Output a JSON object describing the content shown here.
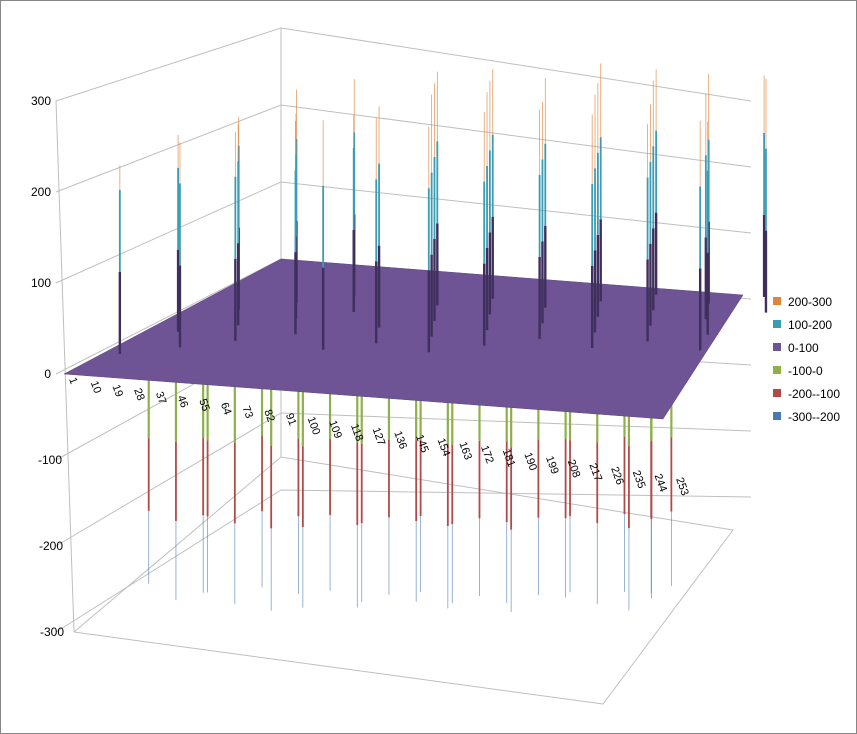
{
  "chart_data": {
    "type": "surface",
    "title": "",
    "xlabel": "",
    "ylabel": "",
    "zlabel": "",
    "z_ticks": [
      "300",
      "200",
      "100",
      "0",
      "-100",
      "-200",
      "-300"
    ],
    "zlim": [
      -300,
      300
    ],
    "x_tick_labels": [
      "1",
      "10",
      "19",
      "28",
      "37",
      "46",
      "55",
      "64",
      "73",
      "82",
      "91",
      "100",
      "109",
      "118",
      "127",
      "136",
      "145",
      "154",
      "163",
      "172",
      "181",
      "190",
      "199",
      "208",
      "217",
      "226",
      "235",
      "244",
      "253"
    ],
    "grid": true,
    "legend_position": "right",
    "legend": [
      {
        "label": "200-300",
        "color": "#E0843C"
      },
      {
        "label": "100-200",
        "color": "#3C9CB4"
      },
      {
        "label": "0-100",
        "color": "#6E5494"
      },
      {
        "label": "-100-0",
        "color": "#8DB04A"
      },
      {
        "label": "-200--100",
        "color": "#B04A48"
      },
      {
        "label": "-300--200",
        "color": "#4A78B0"
      }
    ],
    "base_level": 0,
    "peaks": [
      {
        "x": 12,
        "value": 230
      },
      {
        "x": 18,
        "value": 240
      },
      {
        "x": 25,
        "value": 235
      },
      {
        "x": 32,
        "value": 250
      },
      {
        "x": 38,
        "value": 245
      },
      {
        "x": 44,
        "value": 260
      },
      {
        "x": 50,
        "value": 255
      },
      {
        "x": 57,
        "value": 250
      },
      {
        "x": 63,
        "value": 265
      },
      {
        "x": 70,
        "value": 260
      },
      {
        "x": 76,
        "value": 240
      },
      {
        "x": 95,
        "value": 280
      },
      {
        "x": 100,
        "value": 270
      },
      {
        "x": 106,
        "value": 285
      },
      {
        "x": 112,
        "value": 275
      },
      {
        "x": 118,
        "value": 290
      },
      {
        "x": 124,
        "value": 280
      },
      {
        "x": 130,
        "value": 295
      },
      {
        "x": 136,
        "value": 285
      },
      {
        "x": 142,
        "value": 275
      },
      {
        "x": 148,
        "value": 290
      },
      {
        "x": 154,
        "value": 280
      },
      {
        "x": 160,
        "value": 285
      },
      {
        "x": 166,
        "value": 270
      },
      {
        "x": 172,
        "value": 290
      },
      {
        "x": 178,
        "value": 280
      },
      {
        "x": 184,
        "value": 285
      },
      {
        "x": 190,
        "value": 275
      },
      {
        "x": 196,
        "value": 290
      },
      {
        "x": 202,
        "value": 280
      },
      {
        "x": 208,
        "value": 285
      },
      {
        "x": 214,
        "value": 270
      },
      {
        "x": 220,
        "value": 280
      },
      {
        "x": 226,
        "value": 265
      },
      {
        "x": 232,
        "value": 275
      },
      {
        "x": 238,
        "value": 270
      },
      {
        "x": 246,
        "value": 260
      },
      {
        "x": 252,
        "value": 285
      },
      {
        "x": 256,
        "value": 280
      }
    ],
    "troughs": [
      {
        "x": 36,
        "value": -230
      },
      {
        "x": 44,
        "value": -250
      },
      {
        "x": 52,
        "value": -245
      },
      {
        "x": 60,
        "value": -240
      },
      {
        "x": 68,
        "value": -255
      },
      {
        "x": 76,
        "value": -240
      },
      {
        "x": 86,
        "value": -260
      },
      {
        "x": 94,
        "value": -245
      },
      {
        "x": 102,
        "value": -255
      },
      {
        "x": 110,
        "value": -240
      },
      {
        "x": 118,
        "value": -260
      },
      {
        "x": 126,
        "value": -250
      },
      {
        "x": 134,
        "value": -245
      },
      {
        "x": 142,
        "value": -255
      },
      {
        "x": 150,
        "value": -240
      },
      {
        "x": 158,
        "value": -260
      },
      {
        "x": 166,
        "value": -250
      },
      {
        "x": 174,
        "value": -245
      },
      {
        "x": 182,
        "value": -255
      },
      {
        "x": 190,
        "value": -260
      },
      {
        "x": 198,
        "value": -245
      },
      {
        "x": 206,
        "value": -250
      },
      {
        "x": 214,
        "value": -240
      },
      {
        "x": 222,
        "value": -255
      },
      {
        "x": 230,
        "value": -245
      },
      {
        "x": 238,
        "value": -260
      },
      {
        "x": 244,
        "value": -250
      },
      {
        "x": 250,
        "value": -240
      },
      {
        "x": 255,
        "value": -235
      }
    ]
  }
}
